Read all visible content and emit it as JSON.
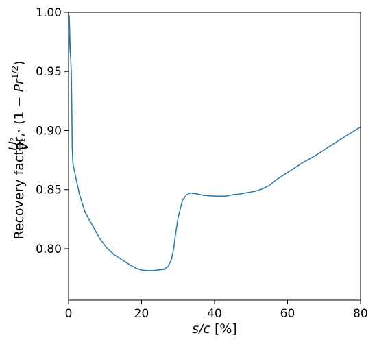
{
  "chart_data": {
    "type": "line",
    "xlabel_var": "s/c",
    "xlabel_unit": "[%]",
    "ylabel_prefix": "Recovery factor,",
    "ylabel_u": "U",
    "ylabel_v": "V",
    "ylabel_sq": "2",
    "ylabel_mid": "· (1 − ",
    "ylabel_pr": "Pr",
    "ylabel_exp": "1/2",
    "ylabel_close": ")",
    "xlim": [
      0,
      80
    ],
    "ylim": [
      0.7565,
      1.0
    ],
    "xticks": [
      0,
      20,
      40,
      60,
      80
    ],
    "xtick_labels": [
      "0",
      "20",
      "40",
      "60",
      "80"
    ],
    "yticks": [
      0.8,
      0.85,
      0.9,
      0.95,
      1.0
    ],
    "ytick_labels": [
      "0.80",
      "0.85",
      "0.90",
      "0.95",
      "1.00"
    ],
    "grid": false,
    "color": "#1f77b4",
    "series": [
      {
        "x": [
          0.0,
          0.1,
          0.2,
          0.35,
          0.5,
          0.6,
          0.75,
          0.9,
          1.0,
          1.2,
          2.0,
          3.0,
          4.5,
          6.5,
          8.5,
          10.5,
          12.5,
          15.0,
          17.0,
          18.5,
          20.0,
          21.5,
          23.0,
          24.5,
          26.0,
          27.3,
          28.2,
          28.8,
          29.3,
          30.0,
          31.2,
          32.3,
          33.3,
          35.0,
          37.0,
          39.0,
          41.0,
          43.0,
          45.0,
          47.0,
          49.0,
          51.0,
          53.0,
          55.0,
          57.0,
          60.0,
          64.0,
          68.0,
          72.0,
          76.0,
          80.0
        ],
        "y": [
          1.0,
          0.966,
          0.997,
          0.98,
          0.965,
          0.96,
          0.95,
          0.92,
          0.886,
          0.872,
          0.86,
          0.846,
          0.831,
          0.82,
          0.809,
          0.8005,
          0.795,
          0.79,
          0.786,
          0.7835,
          0.782,
          0.7815,
          0.7815,
          0.782,
          0.7825,
          0.785,
          0.791,
          0.8,
          0.812,
          0.826,
          0.841,
          0.8455,
          0.8472,
          0.8465,
          0.8452,
          0.8447,
          0.8445,
          0.8445,
          0.8457,
          0.8463,
          0.8475,
          0.8485,
          0.8505,
          0.8535,
          0.8585,
          0.8645,
          0.8725,
          0.8795,
          0.8875,
          0.8955,
          0.903
        ]
      }
    ]
  }
}
